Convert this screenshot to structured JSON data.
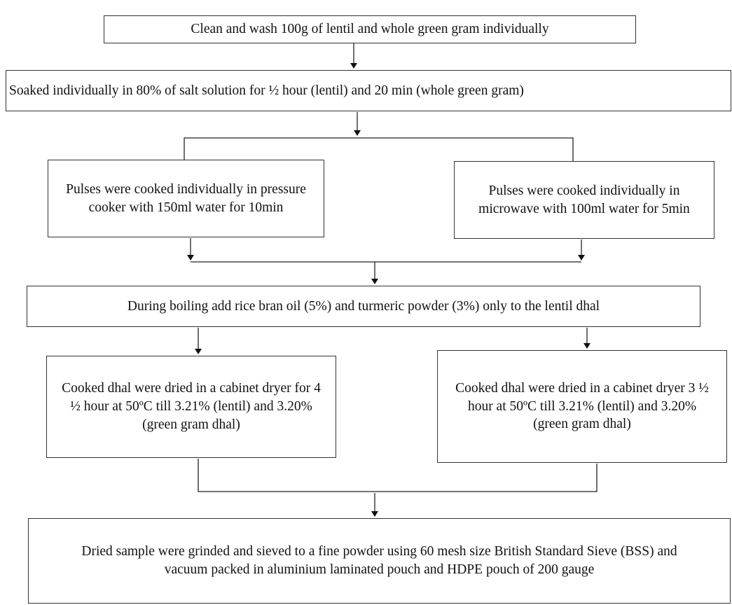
{
  "nodes": [
    {
      "label": "Clean and wash 100g of lentil and whole green gram individually"
    },
    {
      "label": "Soaked individually in 80% of salt solution for ½ hour (lentil) and 20 min (whole green gram)"
    },
    {
      "label": "Pulses were cooked individually in pressure cooker with 150ml water for 10min"
    },
    {
      "label": "Pulses were cooked individually in microwave with 100ml water for 5min"
    },
    {
      "label": "During boiling add rice bran oil (5%) and turmeric powder (3%) only to the lentil dhal"
    },
    {
      "label": "Cooked dhal were dried in a cabinet dryer for 4 ½ hour at 50ºC till 3.21% (lentil) and 3.20% (green gram dhal)"
    },
    {
      "label": "Cooked dhal were dried in a cabinet dryer 3 ½ hour at 50ºC till 3.21% (lentil) and 3.20% (green gram dhal)"
    },
    {
      "label": "Dried sample were grinded and sieved to a fine powder using 60 mesh size British Standard Sieve (BSS) and vacuum packed in aluminium laminated pouch and HDPE pouch of 200 gauge"
    }
  ]
}
